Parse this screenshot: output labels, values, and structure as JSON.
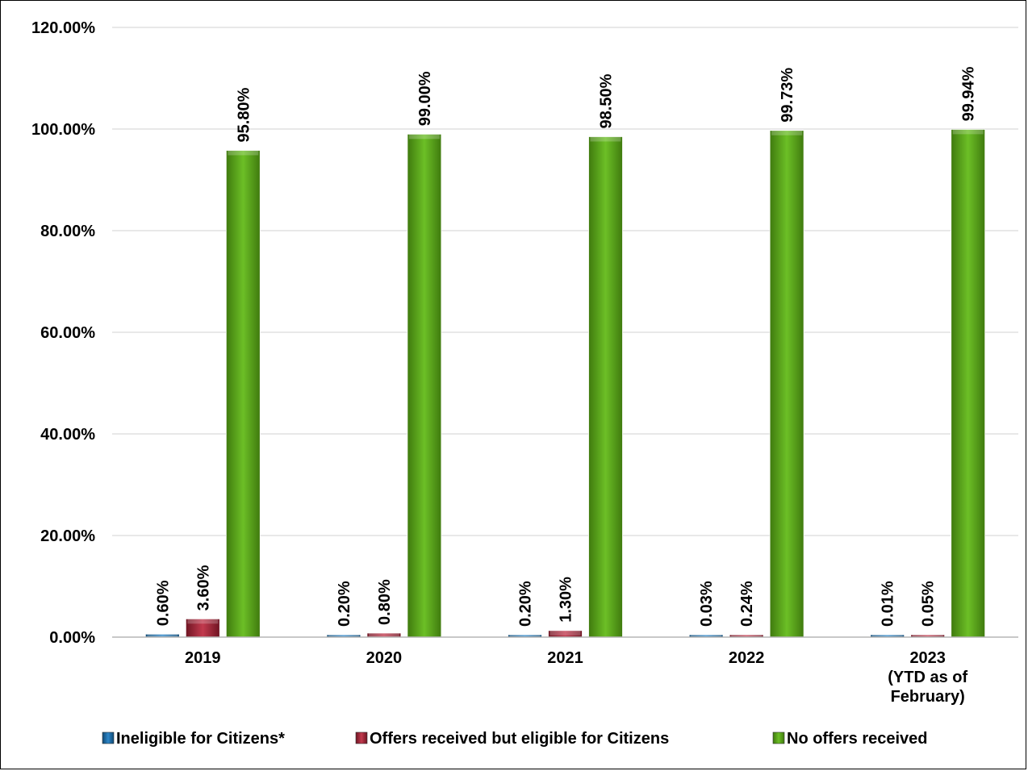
{
  "chart_data": {
    "type": "bar",
    "categories": [
      "2019",
      "2020",
      "2021",
      "2022",
      "2023\n(YTD as of\nFebruary)"
    ],
    "series": [
      {
        "name": "Ineligible for Citizens*",
        "values": [
          0.6,
          0.2,
          0.2,
          0.03,
          0.01
        ],
        "labels": [
          "0.60%",
          "0.20%",
          "0.20%",
          "0.03%",
          "0.01%"
        ],
        "color": "#1F6FA8"
      },
      {
        "name": "Offers received but eligible for Citizens",
        "values": [
          3.6,
          0.8,
          1.3,
          0.24,
          0.05
        ],
        "labels": [
          "3.60%",
          "0.80%",
          "1.30%",
          "0.24%",
          "0.05%"
        ],
        "color": "#A52A3C"
      },
      {
        "name": "No offers received",
        "values": [
          95.8,
          99.0,
          98.5,
          99.73,
          99.94
        ],
        "labels": [
          "95.80%",
          "99.00%",
          "98.50%",
          "99.73%",
          "99.94%"
        ],
        "color": "#5EA51E"
      }
    ],
    "ylim": [
      0,
      120
    ],
    "yticks": [
      "0.00%",
      "20.00%",
      "40.00%",
      "60.00%",
      "80.00%",
      "100.00%",
      "120.00%"
    ],
    "ytick_values": [
      0,
      20,
      40,
      60,
      80,
      100,
      120
    ],
    "title": "",
    "xlabel": "",
    "ylabel": "",
    "grid": true,
    "legend_position": "bottom"
  }
}
